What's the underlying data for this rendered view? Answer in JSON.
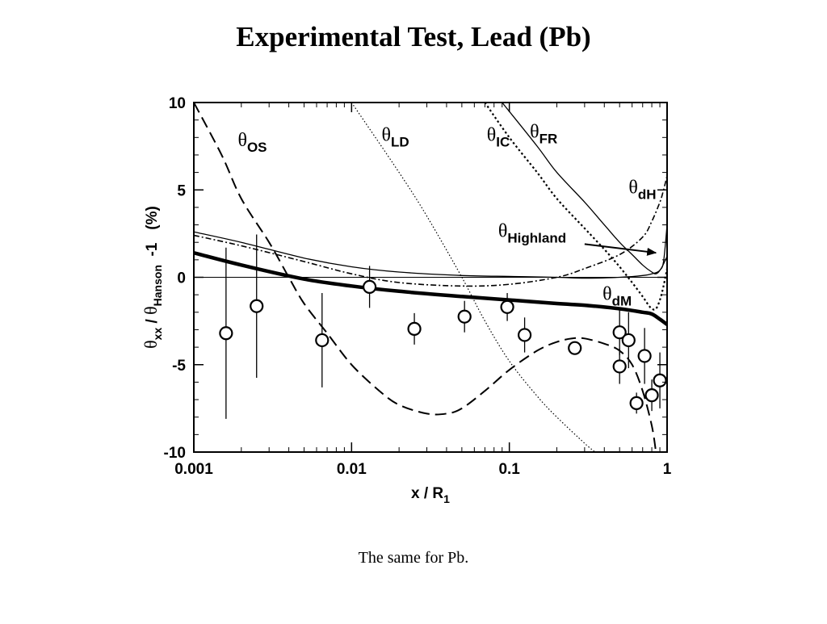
{
  "slide": {
    "title": "Experimental Test, Lead (Pb)",
    "caption": "The same for Pb."
  },
  "chart_data": {
    "type": "scatter",
    "x_scale": "log",
    "xlim": [
      0.001,
      1
    ],
    "ylim": [
      -10,
      10
    ],
    "x_ticks": [
      {
        "value": 0.001,
        "label": "0.001"
      },
      {
        "value": 0.01,
        "label": "0.01"
      },
      {
        "value": 0.1,
        "label": "0.1"
      },
      {
        "value": 1,
        "label": "1"
      }
    ],
    "y_ticks": [
      {
        "value": 10,
        "label": "10"
      },
      {
        "value": 5,
        "label": "5"
      },
      {
        "value": 0,
        "label": "0"
      },
      {
        "value": -5,
        "label": "-5"
      },
      {
        "value": -10,
        "label": "-10"
      }
    ],
    "xlabel": {
      "main": "x / R",
      "sub": "1"
    },
    "ylabel": {
      "theta": "θ",
      "sub1": "xx",
      "slash": " / ",
      "theta2": "θ",
      "sub2": "Hanson",
      "rest": "  -1   (%)"
    },
    "reference_line_y": 0,
    "series": [
      {
        "id": "OS",
        "style": "dashed-long",
        "stroke_width": 2,
        "points": [
          [
            0.001,
            10
          ],
          [
            0.0015,
            7
          ],
          [
            0.002,
            4.5
          ],
          [
            0.003,
            2
          ],
          [
            0.004,
            0
          ],
          [
            0.005,
            -1.5
          ],
          [
            0.007,
            -3.2
          ],
          [
            0.01,
            -5
          ],
          [
            0.015,
            -6.5
          ],
          [
            0.02,
            -7.3
          ],
          [
            0.03,
            -7.8
          ],
          [
            0.04,
            -7.8
          ],
          [
            0.05,
            -7.5
          ],
          [
            0.07,
            -6.5
          ],
          [
            0.1,
            -5.3
          ],
          [
            0.15,
            -4.2
          ],
          [
            0.2,
            -3.7
          ],
          [
            0.25,
            -3.5
          ],
          [
            0.3,
            -3.5
          ],
          [
            0.4,
            -3.8
          ],
          [
            0.5,
            -4.2
          ],
          [
            0.6,
            -5
          ],
          [
            0.7,
            -6.5
          ],
          [
            0.8,
            -8.5
          ],
          [
            0.85,
            -10
          ]
        ]
      },
      {
        "id": "LD",
        "style": "dotted-fine",
        "stroke_width": 1.2,
        "points": [
          [
            0.01,
            10
          ],
          [
            0.02,
            6
          ],
          [
            0.03,
            3.5
          ],
          [
            0.05,
            0
          ],
          [
            0.07,
            -2.5
          ],
          [
            0.1,
            -4.8
          ],
          [
            0.15,
            -6.8
          ],
          [
            0.2,
            -8
          ],
          [
            0.3,
            -9.5
          ],
          [
            0.35,
            -10
          ]
        ]
      },
      {
        "id": "IC",
        "style": "dotted-bold",
        "stroke_width": 2.2,
        "points": [
          [
            0.07,
            10
          ],
          [
            0.1,
            8
          ],
          [
            0.15,
            6
          ],
          [
            0.2,
            4.5
          ],
          [
            0.3,
            2.8
          ],
          [
            0.4,
            1.6
          ],
          [
            0.5,
            0.6
          ],
          [
            0.6,
            -0.3
          ],
          [
            0.7,
            -1.1
          ],
          [
            0.75,
            -1.5
          ],
          [
            0.8,
            -1.8
          ],
          [
            0.85,
            -1.8
          ],
          [
            0.9,
            -1.3
          ],
          [
            0.95,
            -0.5
          ],
          [
            1,
            0.5
          ]
        ]
      },
      {
        "id": "FR",
        "style": "solid-thin",
        "stroke_width": 1.3,
        "points": [
          [
            0.09,
            10
          ],
          [
            0.15,
            7.5
          ],
          [
            0.2,
            6
          ],
          [
            0.3,
            4.3
          ],
          [
            0.4,
            3
          ],
          [
            0.5,
            2
          ],
          [
            0.6,
            1.3
          ],
          [
            0.7,
            0.7
          ],
          [
            0.8,
            0.3
          ],
          [
            0.85,
            0.2
          ],
          [
            0.9,
            0.4
          ],
          [
            0.95,
            0.9
          ],
          [
            1,
            3
          ]
        ]
      },
      {
        "id": "dH",
        "style": "dash-dot",
        "stroke_width": 1.6,
        "points": [
          [
            0.001,
            2.4
          ],
          [
            0.002,
            1.8
          ],
          [
            0.005,
            0.9
          ],
          [
            0.01,
            0.2
          ],
          [
            0.02,
            -0.3
          ],
          [
            0.05,
            -0.5
          ],
          [
            0.1,
            -0.4
          ],
          [
            0.2,
            0
          ],
          [
            0.3,
            0.5
          ],
          [
            0.5,
            1.3
          ],
          [
            0.7,
            2.3
          ],
          [
            0.8,
            3.2
          ],
          [
            0.9,
            4.3
          ],
          [
            0.95,
            5
          ],
          [
            1,
            5.8
          ]
        ]
      },
      {
        "id": "Highland",
        "style": "solid-thin",
        "stroke_width": 1.3,
        "points": [
          [
            0.001,
            2.6
          ],
          [
            0.002,
            2
          ],
          [
            0.005,
            1.1
          ],
          [
            0.01,
            0.6
          ],
          [
            0.02,
            0.3
          ],
          [
            0.05,
            0.1
          ],
          [
            0.1,
            0.05
          ],
          [
            0.2,
            0
          ],
          [
            0.3,
            -0.05
          ],
          [
            0.5,
            0
          ],
          [
            0.7,
            0.1
          ],
          [
            0.8,
            0.2
          ],
          [
            0.9,
            0.4
          ],
          [
            1,
            1.2
          ]
        ]
      },
      {
        "id": "dM",
        "style": "solid-bold",
        "stroke_width": 4.5,
        "points": [
          [
            0.001,
            1.4
          ],
          [
            0.002,
            0.7
          ],
          [
            0.005,
            -0.1
          ],
          [
            0.01,
            -0.5
          ],
          [
            0.02,
            -0.8
          ],
          [
            0.05,
            -1.1
          ],
          [
            0.1,
            -1.3
          ],
          [
            0.2,
            -1.5
          ],
          [
            0.3,
            -1.6
          ],
          [
            0.5,
            -1.8
          ],
          [
            0.7,
            -2
          ],
          [
            0.8,
            -2.1
          ],
          [
            0.9,
            -2.4
          ],
          [
            1,
            -2.7
          ]
        ]
      }
    ],
    "curve_labels": [
      {
        "series": "OS",
        "main": "θ",
        "sub": "OS",
        "x": 0.0019,
        "y": 7.5
      },
      {
        "series": "LD",
        "main": "θ",
        "sub": "LD",
        "x": 0.0155,
        "y": 7.8
      },
      {
        "series": "IC",
        "main": "θ",
        "sub": "IC",
        "x": 0.072,
        "y": 7.8
      },
      {
        "series": "FR",
        "main": "θ",
        "sub": "FR",
        "x": 0.135,
        "y": 8
      },
      {
        "series": "dH",
        "main": "θ",
        "sub": "dH",
        "x": 0.57,
        "y": 4.8
      },
      {
        "series": "Highland",
        "main": "θ",
        "sub": "Highland",
        "x": 0.085,
        "y": 2.3
      },
      {
        "series": "dM",
        "main": "θ",
        "sub": "dM",
        "x": 0.39,
        "y": -1.3
      }
    ],
    "annotation_arrow": {
      "from": [
        0.3,
        1.9
      ],
      "to": [
        0.85,
        1.4
      ]
    },
    "measurements": [
      {
        "x": 0.0016,
        "y": -3.2,
        "err_low": 4.9,
        "err_high": 4.9
      },
      {
        "x": 0.0025,
        "y": -1.65,
        "err_low": 4.1,
        "err_high": 4.1
      },
      {
        "x": 0.0065,
        "y": -3.6,
        "err_low": 2.7,
        "err_high": 2.7
      },
      {
        "x": 0.013,
        "y": -0.55,
        "err_low": 1.2,
        "err_high": 1.2
      },
      {
        "x": 0.025,
        "y": -2.95,
        "err_low": 0.9,
        "err_high": 0.9
      },
      {
        "x": 0.052,
        "y": -2.25,
        "err_low": 0.9,
        "err_high": 0.9
      },
      {
        "x": 0.097,
        "y": -1.7,
        "err_low": 0.8,
        "err_high": 0.8
      },
      {
        "x": 0.125,
        "y": -3.3,
        "err_low": 1.0,
        "err_high": 1.0
      },
      {
        "x": 0.26,
        "y": -4.05,
        "err_low": 0.3,
        "err_high": 0.3
      },
      {
        "x": 0.5,
        "y": -3.15,
        "err_low": 1.3,
        "err_high": 1.3
      },
      {
        "x": 0.5,
        "y": -5.1,
        "err_low": 1.0,
        "err_high": 1.0
      },
      {
        "x": 0.57,
        "y": -3.6,
        "err_low": 1.6,
        "err_high": 1.6
      },
      {
        "x": 0.64,
        "y": -7.2,
        "err_low": 0.6,
        "err_high": 0.6
      },
      {
        "x": 0.72,
        "y": -4.5,
        "err_low": 1.6,
        "err_high": 1.6
      },
      {
        "x": 0.8,
        "y": -6.75,
        "err_low": 0.9,
        "err_high": 0.9
      },
      {
        "x": 0.9,
        "y": -5.9,
        "err_low": 1.6,
        "err_high": 1.6
      }
    ]
  }
}
